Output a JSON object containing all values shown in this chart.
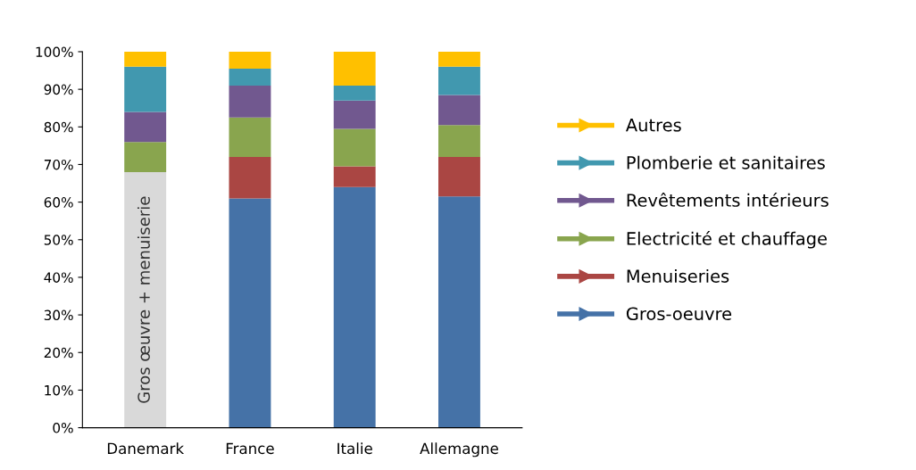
{
  "chart_data": {
    "type": "bar",
    "stacked": true,
    "categories": [
      "Danemark",
      "France",
      "Italie",
      "Allemagne"
    ],
    "series": [
      {
        "name": "Gros œuvre + menuiserie",
        "color": "#d9d9d9",
        "values": [
          68,
          null,
          null,
          null
        ]
      },
      {
        "name": "Gros-oeuvre",
        "color": "#4572a7",
        "values": [
          null,
          61,
          64,
          61.5
        ]
      },
      {
        "name": "Menuiseries",
        "color": "#aa4643",
        "values": [
          null,
          11,
          5.5,
          10.5
        ]
      },
      {
        "name": "Electricité et chauffage",
        "color": "#89a54e",
        "values": [
          8,
          10.5,
          10,
          8.5
        ]
      },
      {
        "name": "Revêtements intérieurs",
        "color": "#71588f",
        "values": [
          8,
          8.5,
          7.5,
          8
        ]
      },
      {
        "name": "Plomberie et sanitaires",
        "color": "#4198af",
        "values": [
          12,
          4.5,
          4,
          7.5
        ]
      },
      {
        "name": "Autres",
        "color": "#ffc000",
        "values": [
          4,
          4.5,
          9,
          4
        ]
      }
    ],
    "ylim": [
      0,
      100
    ],
    "yticks": [
      {
        "value": 0,
        "label": "0%"
      },
      {
        "value": 10,
        "label": "10%"
      },
      {
        "value": 20,
        "label": "20%"
      },
      {
        "value": 30,
        "label": "30%"
      },
      {
        "value": 40,
        "label": "40%"
      },
      {
        "value": 50,
        "label": "50%"
      },
      {
        "value": 60,
        "label": "60%"
      },
      {
        "value": 70,
        "label": "70%"
      },
      {
        "value": 80,
        "label": "80%"
      },
      {
        "value": 90,
        "label": "90%"
      },
      {
        "value": 100,
        "label": "100%"
      }
    ],
    "grid": false,
    "legend": "right"
  }
}
